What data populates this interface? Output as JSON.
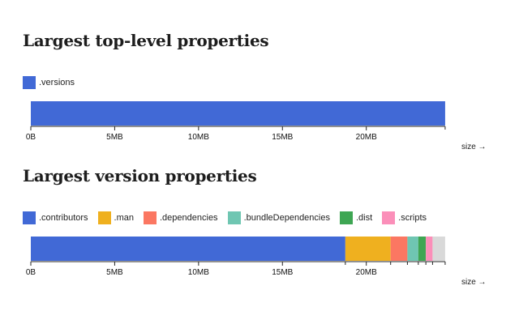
{
  "chart_data": [
    {
      "type": "bar",
      "orientation": "horizontal-stacked",
      "title": "Largest top-level properties",
      "xlabel": "size →",
      "unit": "MB",
      "tick_labels": [
        "0B",
        "5MB",
        "10MB",
        "15MB",
        "20MB"
      ],
      "ticks": [
        0,
        5,
        10,
        15,
        20
      ],
      "xlim": [
        0,
        24.8
      ],
      "legend_position": "top-left",
      "series": [
        {
          "name": ".versions",
          "value": 24.7,
          "color": "#4169d6"
        }
      ]
    },
    {
      "type": "bar",
      "orientation": "horizontal-stacked",
      "title": "Largest version properties",
      "xlabel": "size →",
      "unit": "MB",
      "tick_labels": [
        "0B",
        "5MB",
        "10MB",
        "15MB",
        "20MB"
      ],
      "ticks": [
        0,
        5,
        10,
        15,
        20
      ],
      "xlim": [
        0,
        24.8
      ],
      "legend_position": "top-left",
      "series": [
        {
          "name": ".contributors",
          "value": 18.75,
          "color": "#4169d6"
        },
        {
          "name": ".man",
          "value": 2.7,
          "color": "#efb01f"
        },
        {
          "name": ".dependencies",
          "value": 1.0,
          "color": "#fb7762"
        },
        {
          "name": ".bundleDependencies",
          "value": 0.65,
          "color": "#6fc6b2"
        },
        {
          "name": ".dist",
          "value": 0.45,
          "color": "#3ea653"
        },
        {
          "name": ".scripts",
          "value": 0.4,
          "color": "#fb8fb9"
        },
        {
          "name": "",
          "value": 0.75,
          "color": "#d9d9d9"
        }
      ]
    }
  ]
}
